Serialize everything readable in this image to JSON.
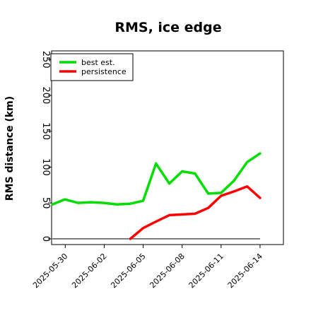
{
  "chart_data": {
    "type": "line",
    "title": "RMS, ice edge",
    "xlabel": "",
    "ylabel": "RMS distance (km)",
    "ylim": [
      -8,
      262
    ],
    "yticks": [
      0,
      50,
      100,
      150,
      200,
      250
    ],
    "xlim": [
      -0.35,
      5.6
    ],
    "xticks": [
      0,
      1,
      2,
      3,
      4,
      5
    ],
    "xtick_labels": [
      "2025-05-30",
      "2025-06-02",
      "2025-06-05",
      "2025-06-08",
      "2025-06-11",
      "2025-06-14"
    ],
    "legend_position": "top-left",
    "grid": false,
    "series": [
      {
        "name": "best est.",
        "color": "#00dd00",
        "x": [
          -0.33,
          -0.01,
          0.33,
          0.67,
          1.0,
          1.33,
          1.67,
          2.0,
          2.33,
          2.67,
          3.0,
          3.33,
          3.67,
          4.0,
          4.33,
          4.67,
          5.0
        ],
        "values": [
          48,
          55,
          50,
          51,
          50,
          48,
          49,
          53,
          105,
          77,
          94,
          91,
          63,
          64,
          81,
          107,
          119
        ]
      },
      {
        "name": "persistence",
        "color": "#ff0000",
        "x": [
          1.67,
          2.0,
          2.33,
          2.67,
          3.0,
          3.33,
          3.67,
          4.0,
          4.33,
          4.67,
          5.0
        ],
        "values": [
          0,
          15,
          24,
          33,
          34,
          35,
          43,
          60,
          66,
          73,
          57
        ]
      }
    ],
    "reference_line": {
      "y": 0,
      "x_start": -0.33,
      "x_end": 5.0,
      "color": "#555555"
    }
  }
}
